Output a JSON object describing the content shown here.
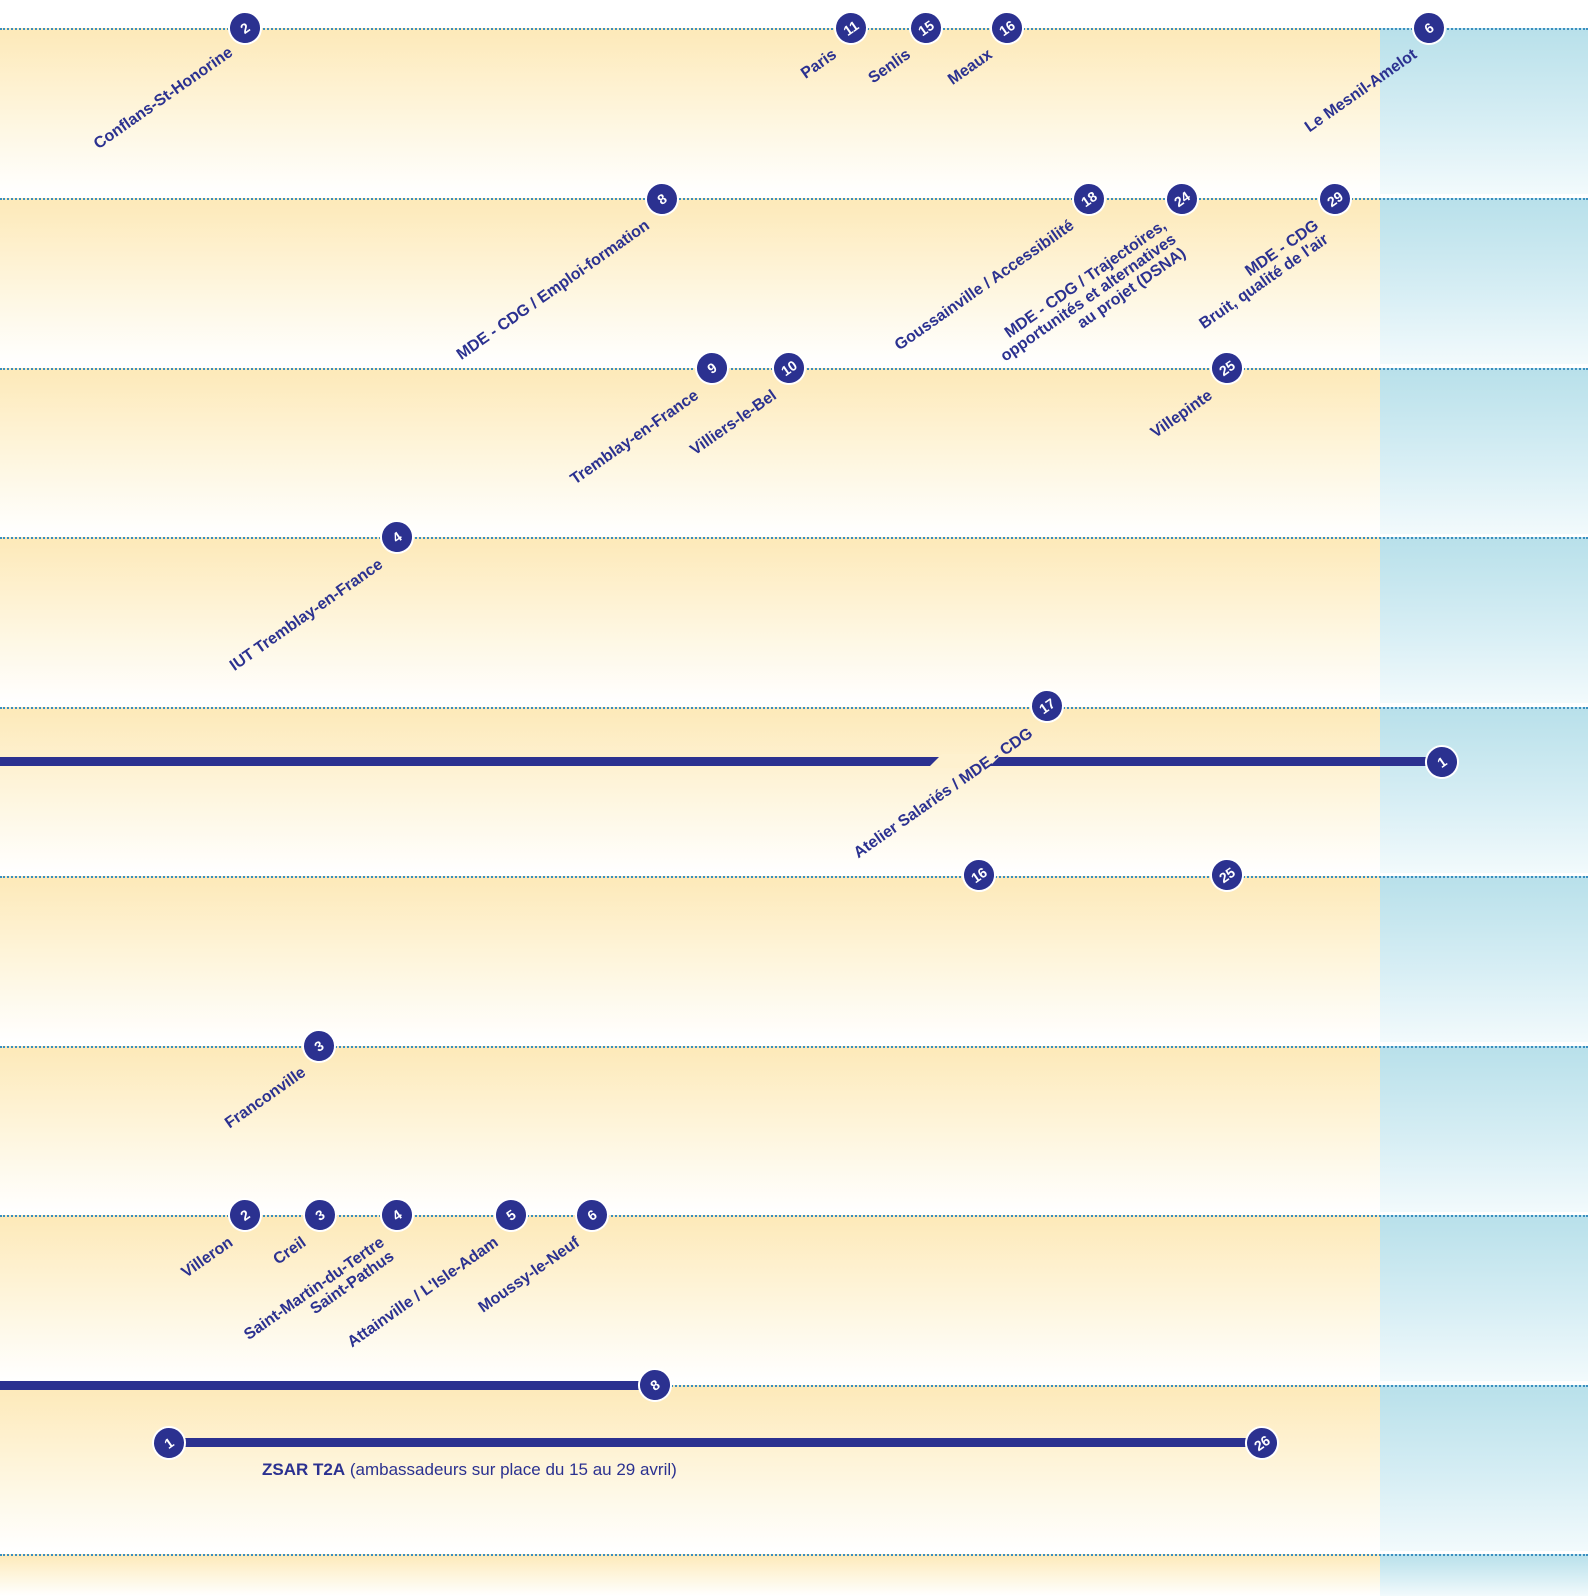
{
  "colors": {
    "accent": "#2b3190",
    "band_warm": "#fde9b8",
    "band_cool": "#b8e0ea",
    "dots": "#3a8fc0"
  },
  "rows": [
    {
      "labels": [
        "Conflans-St-Honorine",
        "Paris",
        "Senlis",
        "Meaux",
        "Le Mesnil-Amelot"
      ],
      "markers": [
        "2",
        "11",
        "15",
        "16",
        "6"
      ]
    },
    {
      "labels": [
        "MDE - CDG / Emploi-formation",
        "Goussainville / Accessibilité",
        "MDE - CDG / Trajectoires,\nopportunités et alternatives\nau projet (DSNA)",
        "MDE - CDG\nBruit, qualité de l'air"
      ],
      "markers": [
        "8",
        "18",
        "24",
        "29"
      ]
    },
    {
      "labels": [
        "Tremblay-en-France",
        "Villiers-le-Bel",
        "Villepinte"
      ],
      "markers": [
        "9",
        "10",
        "25"
      ]
    },
    {
      "labels": [
        "IUT Tremblay-en-France"
      ],
      "markers": [
        "4"
      ]
    },
    {
      "labels": [
        "Atelier Salariés / MDE - CDG"
      ],
      "markers": [
        "17",
        "1"
      ]
    },
    {
      "labels": [],
      "markers": [
        "16",
        "25"
      ]
    },
    {
      "labels": [
        "Franconville"
      ],
      "markers": [
        "3"
      ]
    },
    {
      "labels": [
        "Villeron",
        "Creil",
        "Saint-Martin-du-Tertre\nSaint-Pathus",
        "Attainville / L'Isle-Adam",
        "Moussy-le-Neuf"
      ],
      "markers": [
        "2",
        "3",
        "4",
        "5",
        "6"
      ]
    },
    {
      "labels": [],
      "markers": [
        "8",
        "1",
        "26"
      ]
    }
  ],
  "zsar": {
    "title": "ZSAR T2A",
    "note": " (ambassadeurs sur place du 15 au 29 avril)"
  }
}
